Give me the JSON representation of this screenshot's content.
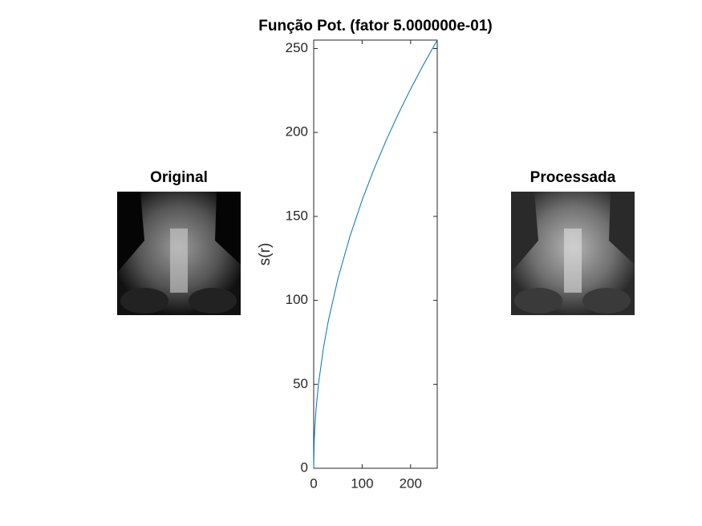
{
  "chart_data": [
    {
      "type": "image",
      "title": "Original"
    },
    {
      "type": "line",
      "title": "Função Pot. (fator 5.000000e-01)",
      "ylabel": "s(r)",
      "x": [
        0,
        1,
        2,
        5,
        10,
        20,
        30,
        50,
        75,
        100,
        125,
        150,
        175,
        200,
        225,
        255
      ],
      "values": [
        0,
        15.97,
        22.58,
        35.71,
        50.5,
        71.41,
        87.46,
        112.92,
        138.29,
        159.69,
        178.54,
        195.58,
        211.25,
        225.83,
        239.53,
        255
      ],
      "color": "#0072bd",
      "xlim": [
        0,
        255
      ],
      "ylim": [
        0,
        255
      ],
      "xticks": [
        0,
        100,
        200
      ],
      "yticks": [
        0,
        50,
        100,
        150,
        200,
        250
      ]
    },
    {
      "type": "image",
      "title": "Processada"
    }
  ]
}
